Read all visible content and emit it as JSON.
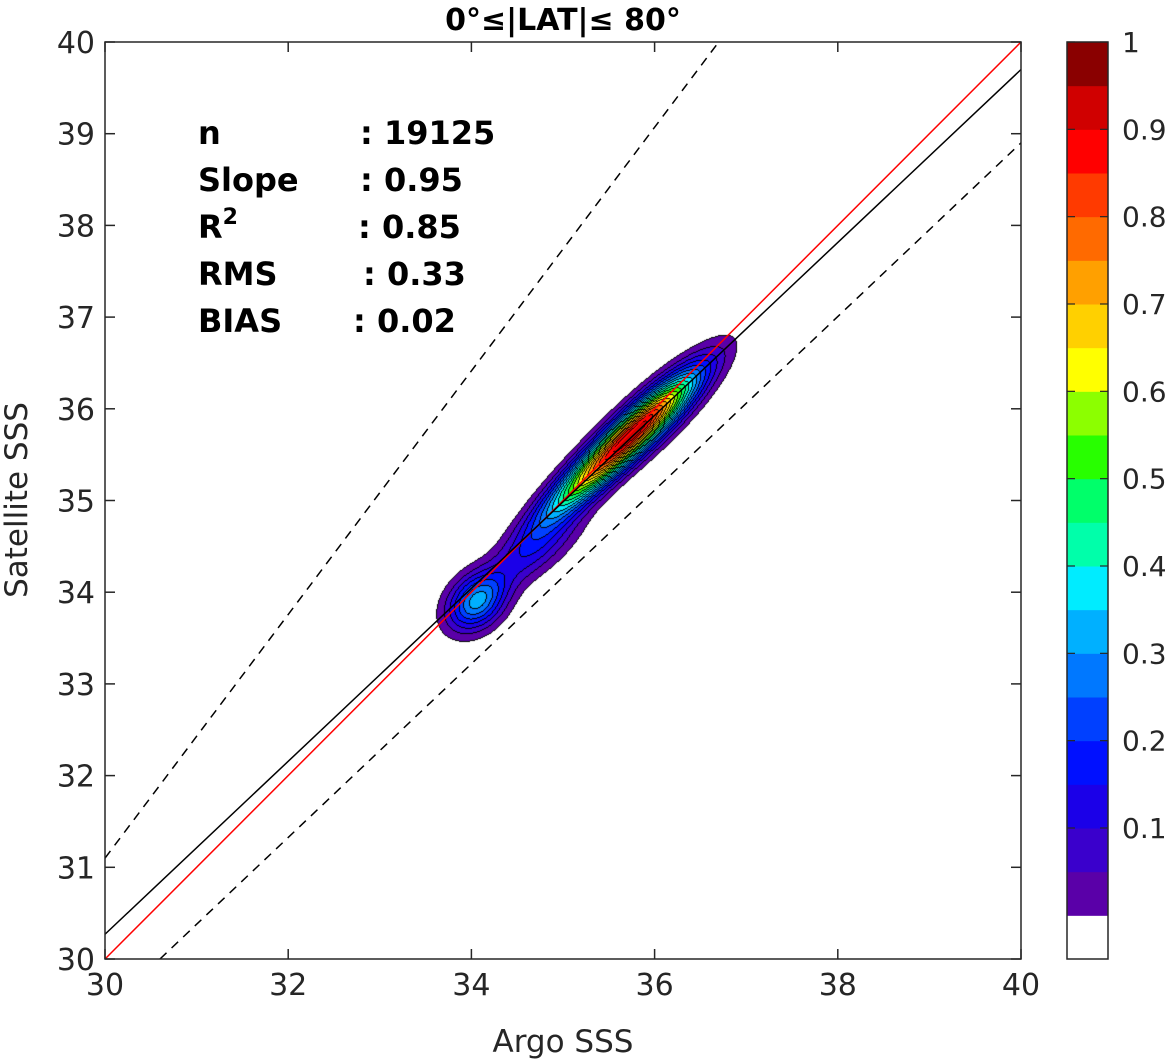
{
  "chart_data": {
    "type": "contour",
    "title": "0°≤|LAT|≤ 80°",
    "xlabel": "Argo SSS",
    "ylabel": "Satellite SSS",
    "xlim": [
      30,
      40
    ],
    "ylim": [
      30,
      40
    ],
    "xticks": [
      "30",
      "32",
      "34",
      "36",
      "38",
      "40"
    ],
    "yticks": [
      "30",
      "31",
      "32",
      "33",
      "34",
      "35",
      "36",
      "37",
      "38",
      "39",
      "40"
    ],
    "grid": true,
    "stats": [
      {
        "label": "n",
        "value": ": 19125"
      },
      {
        "label": "Slope",
        "value": ": 0.95"
      },
      {
        "label": "R",
        "sup": "2",
        "value": ": 0.85"
      },
      {
        "label": "RMS",
        "value": ": 0.33"
      },
      {
        "label": "BIAS",
        "value": ": 0.02"
      }
    ],
    "lines": [
      {
        "kind": "identity",
        "color": "#ff0000",
        "style": "solid",
        "x": [
          30,
          40
        ],
        "y": [
          30,
          40
        ]
      },
      {
        "kind": "regression",
        "color": "#000000",
        "style": "solid",
        "x": [
          30,
          40
        ],
        "y": [
          30.27,
          39.7
        ]
      },
      {
        "kind": "upper-bound",
        "color": "#000000",
        "style": "dashed",
        "x": [
          30,
          36.7
        ],
        "y": [
          31.1,
          40
        ]
      },
      {
        "kind": "lower-bound",
        "color": "#000000",
        "style": "dashed",
        "x": [
          30.6,
          40
        ],
        "y": [
          30,
          38.9
        ]
      }
    ],
    "density": {
      "description_levels": [
        0.05,
        0.1,
        0.15,
        0.2,
        0.25,
        0.3,
        0.35,
        0.4,
        0.45,
        0.5,
        0.55,
        0.6,
        0.65,
        0.7,
        0.75,
        0.8,
        0.85,
        0.9,
        0.95
      ],
      "components": [
        {
          "center": [
            34.05,
            33.9
          ],
          "sx": 0.22,
          "sy": 0.22,
          "rho": 0.3,
          "weight": 0.5
        },
        {
          "center": [
            35.45,
            35.45
          ],
          "sx": 0.5,
          "sy": 0.48,
          "rho": 0.92,
          "weight": 1.0
        },
        {
          "center": [
            36.0,
            35.95
          ],
          "sx": 0.4,
          "sy": 0.38,
          "rho": 0.85,
          "weight": 0.7
        },
        {
          "center": [
            34.7,
            34.45
          ],
          "sx": 0.35,
          "sy": 0.3,
          "rho": 0.75,
          "weight": 0.22
        }
      ]
    },
    "colorbar": {
      "ticks": [
        "0.1",
        "0.2",
        "0.3",
        "0.4",
        "0.5",
        "0.6",
        "0.7",
        "0.8",
        "0.9",
        "1"
      ],
      "colors": [
        "#ffffff",
        "#5a00a8",
        "#3a00cc",
        "#1b00e8",
        "#0010ff",
        "#0040ff",
        "#0078ff",
        "#00b0ff",
        "#00ecff",
        "#00ffaa",
        "#00ff6a",
        "#28ff00",
        "#8cff00",
        "#ffff00",
        "#ffd000",
        "#ffa000",
        "#ff6a00",
        "#ff3a00",
        "#ff0000",
        "#d00000",
        "#8a0000"
      ]
    }
  }
}
